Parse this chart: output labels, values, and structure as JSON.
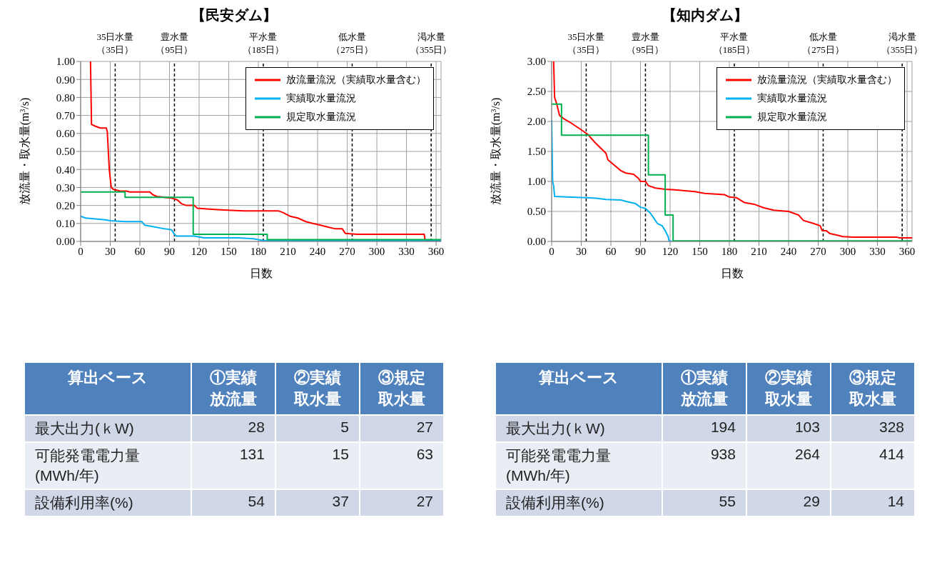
{
  "chart_data": [
    {
      "type": "line",
      "title": "【民安ダム】",
      "xlabel": "日数",
      "ylabel": "放流量・取水量(m$^{3}$/s)",
      "xlim": [
        0,
        365
      ],
      "xticks": [
        0,
        30,
        60,
        90,
        120,
        150,
        180,
        210,
        240,
        270,
        300,
        330,
        360
      ],
      "ylim": [
        0,
        1
      ],
      "yticks": [
        {
          "value": 0,
          "label": "0.00"
        },
        {
          "value": 0.1,
          "label": "0.10"
        },
        {
          "value": 0.2,
          "label": "0.20"
        },
        {
          "value": 0.3,
          "label": "0.30"
        },
        {
          "value": 0.4,
          "label": "0.40"
        },
        {
          "value": 0.5,
          "label": "0.50"
        },
        {
          "value": 0.6,
          "label": "0.60"
        },
        {
          "value": 0.7,
          "label": "0.70"
        },
        {
          "value": 0.8,
          "label": "0.80"
        },
        {
          "value": 0.9,
          "label": "0.90"
        },
        {
          "value": 1,
          "label": "1.00"
        }
      ],
      "grid": true,
      "legend": "top right",
      "line_style": "solid",
      "ref_lines": [
        {
          "axis": "x",
          "value": 35,
          "label": "35日水量（35日）",
          "color": "#000000",
          "line_style": "dashed"
        },
        {
          "axis": "x",
          "value": 95,
          "label": "豊水量（95日）",
          "color": "#000000",
          "line_style": "dashed"
        },
        {
          "axis": "x",
          "value": 185,
          "label": "平水量（185日）",
          "color": "#000000",
          "line_style": "dashed"
        },
        {
          "axis": "x",
          "value": 275,
          "label": "低水量（275日）",
          "color": "#000000",
          "line_style": "dashed"
        },
        {
          "axis": "x",
          "value": 355,
          "label": "渇水量（355日）",
          "color": "#000000",
          "line_style": "dashed"
        }
      ],
      "series": [
        {
          "name": "放流量流況（実績取水量含む）",
          "color": "#ff0000",
          "x": [
            10,
            11,
            15,
            20,
            26,
            27,
            29,
            31,
            33,
            40,
            46,
            50,
            70,
            73,
            77,
            85,
            93,
            98,
            102,
            107,
            115,
            118,
            130,
            145,
            165,
            200,
            205,
            212,
            220,
            228,
            235,
            243,
            250,
            258,
            265,
            268,
            280,
            348,
            349,
            365
          ],
          "values": [
            1.0,
            0.65,
            0.64,
            0.63,
            0.63,
            0.61,
            0.4,
            0.3,
            0.29,
            0.28,
            0.28,
            0.275,
            0.275,
            0.26,
            0.25,
            0.245,
            0.24,
            0.23,
            0.21,
            0.2,
            0.2,
            0.185,
            0.18,
            0.175,
            0.17,
            0.17,
            0.16,
            0.14,
            0.13,
            0.11,
            0.1,
            0.09,
            0.08,
            0.07,
            0.07,
            0.045,
            0.04,
            0.04,
            0.0,
            0.0
          ]
        },
        {
          "name": "実績取水量流況",
          "color": "#00b0f0",
          "x": [
            0,
            5,
            15,
            25,
            30,
            45,
            62,
            65,
            75,
            85,
            92,
            95,
            97,
            115,
            120,
            125,
            160,
            175,
            180,
            185,
            365
          ],
          "values": [
            0.14,
            0.13,
            0.125,
            0.12,
            0.115,
            0.11,
            0.11,
            0.09,
            0.08,
            0.07,
            0.065,
            0.04,
            0.03,
            0.03,
            0.025,
            0.02,
            0.02,
            0.015,
            0.01,
            0.005,
            0.005
          ]
        },
        {
          "name": "規定取水量流況",
          "color": "#00b050",
          "x": [
            0,
            45,
            45,
            114,
            114,
            189,
            189,
            365
          ],
          "values": [
            0.275,
            0.275,
            0.245,
            0.245,
            0.04,
            0.04,
            0.01,
            0.01
          ]
        }
      ]
    },
    {
      "type": "line",
      "title": "【知内ダム】",
      "xlabel": "日数",
      "ylabel": "放流量・取水量(m$^{3}$/s)",
      "xlim": [
        0,
        365
      ],
      "xticks": [
        0,
        30,
        60,
        90,
        120,
        150,
        180,
        210,
        240,
        270,
        300,
        330,
        360
      ],
      "ylim": [
        0,
        3
      ],
      "yticks": [
        {
          "value": 0,
          "label": "0.00"
        },
        {
          "value": 0.5,
          "label": "0.50"
        },
        {
          "value": 1,
          "label": "1.00"
        },
        {
          "value": 1.5,
          "label": "1.50"
        },
        {
          "value": 2,
          "label": "2.00"
        },
        {
          "value": 2.5,
          "label": "2.50"
        },
        {
          "value": 3,
          "label": "3.00"
        }
      ],
      "grid": true,
      "legend": "top right",
      "line_style": "solid",
      "ref_lines": [
        {
          "axis": "x",
          "value": 35,
          "label": "35日水量（35日）",
          "color": "#000000",
          "line_style": "dashed"
        },
        {
          "axis": "x",
          "value": 95,
          "label": "豊水量（95日）",
          "color": "#000000",
          "line_style": "dashed"
        },
        {
          "axis": "x",
          "value": 185,
          "label": "平水量（185日）",
          "color": "#000000",
          "line_style": "dashed"
        },
        {
          "axis": "x",
          "value": 275,
          "label": "低水量（275日）",
          "color": "#000000",
          "line_style": "dashed"
        },
        {
          "axis": "x",
          "value": 355,
          "label": "渇水量（355日）",
          "color": "#000000",
          "line_style": "dashed"
        }
      ],
      "series": [
        {
          "name": "放流量流況（実績取水量含む）",
          "color": "#ff0000",
          "x": [
            2,
            3,
            5,
            8,
            12,
            20,
            30,
            37,
            40,
            45,
            50,
            55,
            57,
            65,
            70,
            75,
            83,
            88,
            90,
            95,
            98,
            105,
            115,
            125,
            145,
            155,
            175,
            180,
            187,
            195,
            205,
            215,
            225,
            240,
            250,
            255,
            265,
            272,
            274,
            278,
            282,
            290,
            295,
            305,
            350,
            352,
            365
          ],
          "values": [
            3.0,
            2.4,
            2.3,
            2.1,
            2.05,
            1.97,
            1.86,
            1.78,
            1.72,
            1.63,
            1.55,
            1.47,
            1.36,
            1.25,
            1.18,
            1.14,
            1.12,
            1.05,
            1.0,
            1.0,
            0.93,
            0.89,
            0.87,
            0.86,
            0.83,
            0.8,
            0.78,
            0.74,
            0.73,
            0.65,
            0.62,
            0.56,
            0.52,
            0.5,
            0.44,
            0.35,
            0.3,
            0.26,
            0.18,
            0.18,
            0.13,
            0.1,
            0.08,
            0.07,
            0.07,
            0.06,
            0.06
          ]
        },
        {
          "name": "実績取水量流況",
          "color": "#00b0f0",
          "x": [
            0,
            1,
            2,
            3,
            15,
            35,
            45,
            55,
            70,
            77,
            85,
            90,
            95,
            100,
            103,
            107,
            112,
            115,
            118,
            119,
            122
          ],
          "values": [
            2.02,
            1.0,
            0.93,
            0.75,
            0.74,
            0.73,
            0.72,
            0.7,
            0.69,
            0.66,
            0.63,
            0.57,
            0.55,
            0.47,
            0.4,
            0.3,
            0.26,
            0.18,
            0.08,
            0.01,
            0.0
          ]
        },
        {
          "name": "規定取水量流況",
          "color": "#00b050",
          "x": [
            0,
            10,
            10,
            98,
            98,
            115,
            115,
            123,
            123,
            365
          ],
          "values": [
            2.29,
            2.29,
            1.77,
            1.77,
            1.11,
            1.11,
            0.44,
            0.44,
            0.01,
            0.01
          ]
        }
      ]
    },
    {
      "type": "heatmap",
      "ylabel": "算出ベース",
      "categories": [
        "①実績放流量",
        "②実績取水量",
        "③規定取水量"
      ],
      "y_categories": [
        "最大出力(ｋW)",
        "可能発電電力量(MWh/年)",
        "設備利用率(%)"
      ],
      "cells": [
        [
          28,
          5,
          27
        ],
        [
          131,
          15,
          63
        ],
        [
          54,
          37,
          27
        ]
      ],
      "data_labels": true
    },
    {
      "type": "heatmap",
      "ylabel": "算出ベース",
      "categories": [
        "①実績放流量",
        "②実績取水量",
        "③規定取水量"
      ],
      "y_categories": [
        "最大出力(ｋW)",
        "可能発電電力量(MWh/年)",
        "設備利用率(%)"
      ],
      "cells": [
        [
          194,
          103,
          328
        ],
        [
          938,
          264,
          414
        ],
        [
          55,
          29,
          14
        ]
      ],
      "data_labels": true
    }
  ]
}
